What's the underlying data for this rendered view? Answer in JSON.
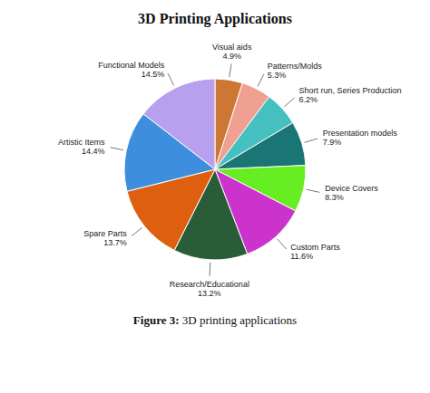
{
  "chart_data": {
    "type": "pie",
    "title": "3D Printing Applications",
    "caption": [
      "Figure 3:",
      "3D printing applications"
    ],
    "categories": [
      "Visual aids",
      "Patterns/Molds",
      "Short run, Series Production",
      "Presentation models",
      "Device Covers",
      "Custom Parts",
      "Research/Educational",
      "Spare Parts",
      "Artistic Items",
      "Functional Models"
    ],
    "values": [
      4.9,
      5.3,
      6.2,
      7.9,
      8.3,
      11.6,
      13.2,
      13.7,
      14.4,
      14.5
    ],
    "value_labels": [
      "4.9%",
      "5.3%",
      "6.2%",
      "7.9%",
      "8.3%",
      "11.6%",
      "13.2%",
      "13.7%",
      "14.4%",
      "14.5%"
    ],
    "colors": [
      "#CC7733",
      "#F0A090",
      "#45BFBF",
      "#1A7575",
      "#66EE22",
      "#CC33CC",
      "#2A5C38",
      "#DD5F0F",
      "#3D8FDD",
      "#B8A0EE"
    ]
  }
}
